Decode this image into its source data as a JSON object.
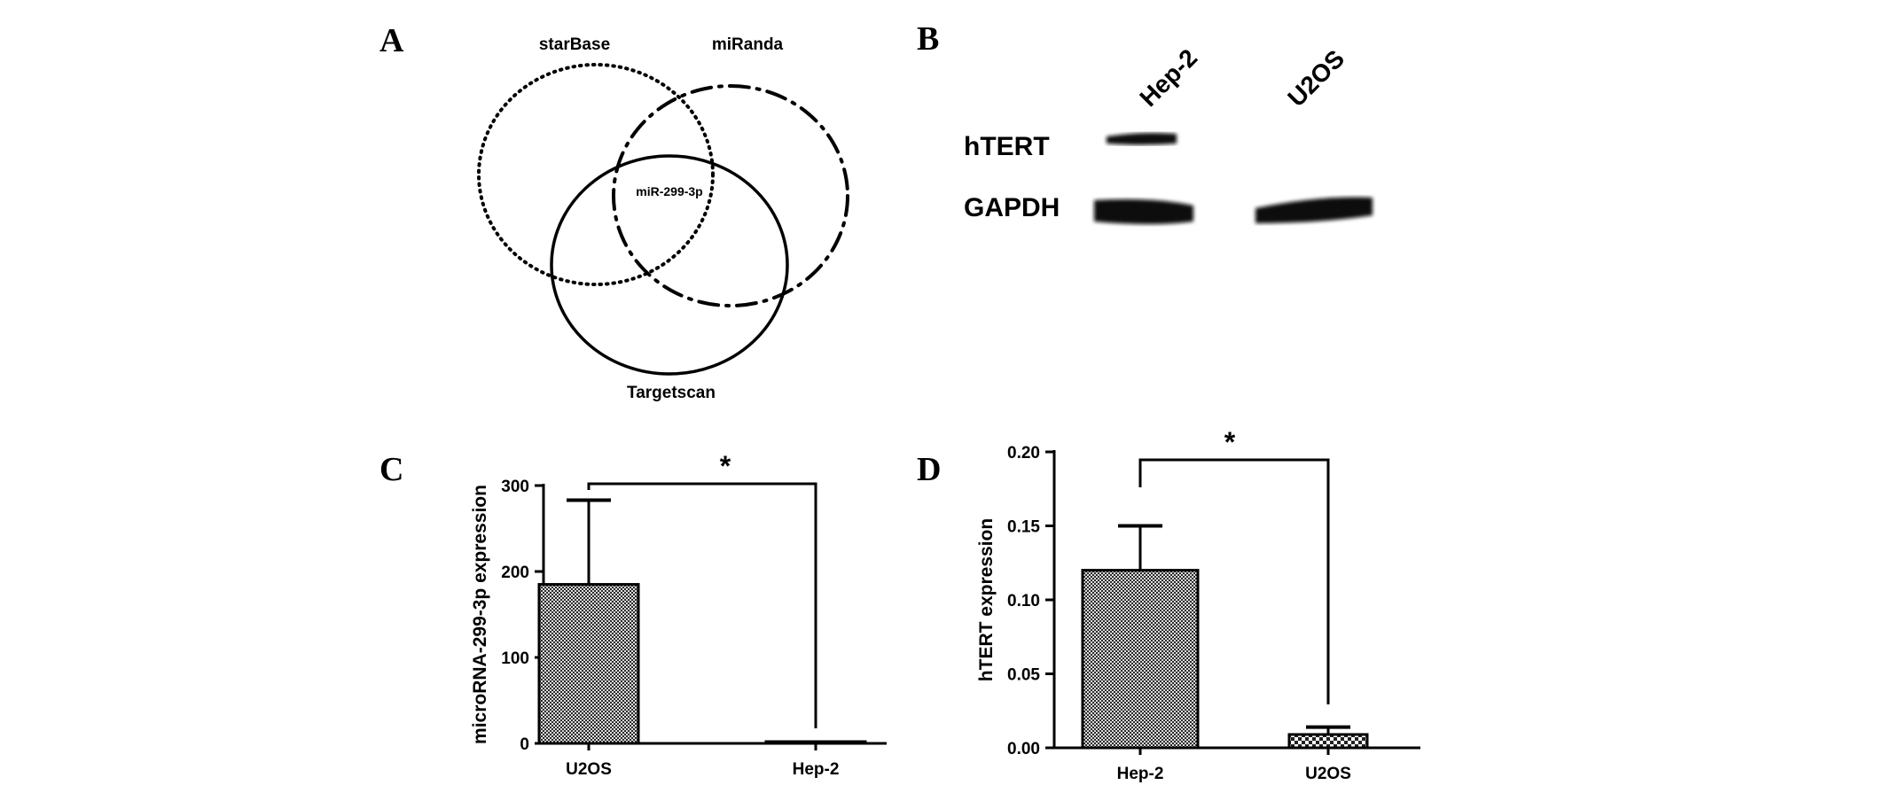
{
  "panels": {
    "a": {
      "letter": "A",
      "labels": {
        "starbase": "starBase",
        "miranda": "miRanda",
        "targetscan": "Targetscan",
        "center": "miR-299-3p"
      }
    },
    "b": {
      "letter": "B",
      "lanes": [
        "Hep-2",
        "U2OS"
      ],
      "rows": [
        "hTERT",
        "GAPDH"
      ]
    },
    "c": {
      "letter": "C"
    },
    "d": {
      "letter": "D"
    }
  },
  "chart_data": [
    {
      "panel": "C",
      "type": "bar",
      "categories": [
        "U2OS",
        "Hep-2"
      ],
      "values": [
        185,
        1
      ],
      "error": [
        98,
        0
      ],
      "ylabel": "microRNA-299-3p expression",
      "ylim": [
        0,
        300
      ],
      "yticks": [
        "0",
        "100",
        "200",
        "300"
      ],
      "significance": "*"
    },
    {
      "panel": "D",
      "type": "bar",
      "categories": [
        "Hep-2",
        "U2OS"
      ],
      "values": [
        0.12,
        0.009
      ],
      "error": [
        0.03,
        0.005
      ],
      "ylabel": "hTERT  expression",
      "ylim": [
        0,
        0.2
      ],
      "yticks": [
        "0.00",
        "0.05",
        "0.10",
        "0.15",
        "0.20"
      ],
      "significance": "*"
    }
  ]
}
